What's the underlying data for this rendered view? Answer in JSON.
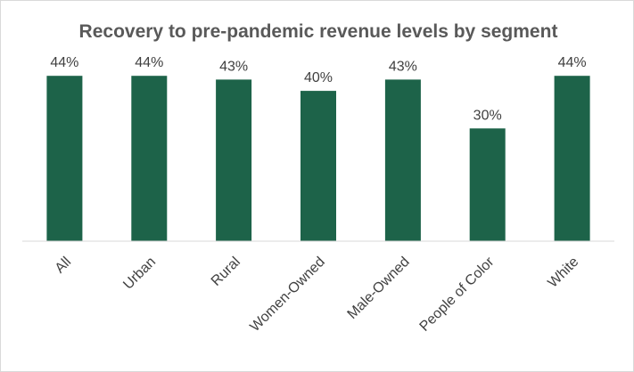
{
  "chart_data": {
    "type": "bar",
    "title": "Recovery to pre-pandemic revenue levels by segment",
    "categories": [
      "All",
      "Urban",
      "Rural",
      "Women-Owned",
      "Male-Owned",
      "People of Color",
      "White"
    ],
    "values": [
      44,
      44,
      43,
      40,
      43,
      30,
      44
    ],
    "data_labels": [
      "44%",
      "44%",
      "43%",
      "40%",
      "43%",
      "30%",
      "44%"
    ],
    "value_unit": "%",
    "xlabel": "",
    "ylabel": "",
    "ylim": [
      0,
      45
    ],
    "grid": false,
    "legend": "none",
    "bar_color": "#1d6349",
    "axis_color": "#d9d9d9"
  }
}
